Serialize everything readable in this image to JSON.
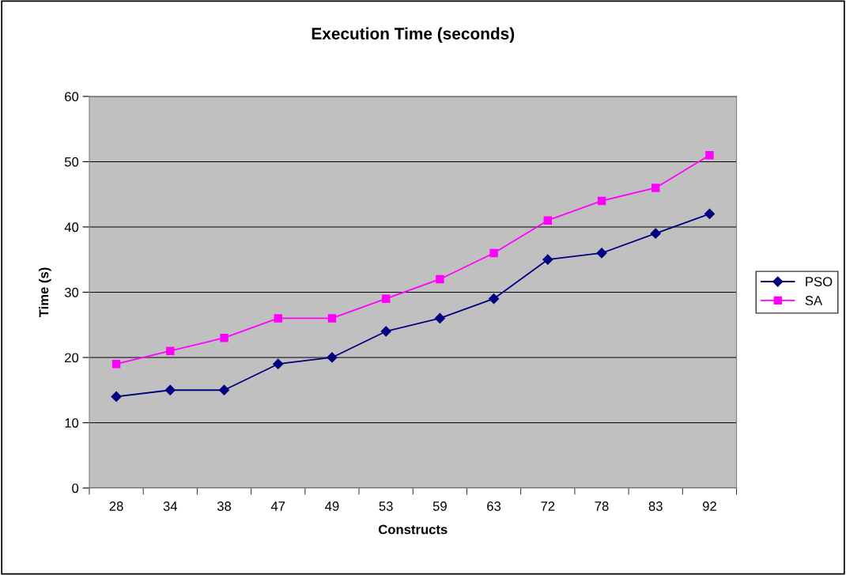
{
  "chart_data": {
    "type": "line",
    "title": "Execution Time (seconds)",
    "xlabel": "Constructs",
    "ylabel": "Time (s)",
    "categories": [
      "28",
      "34",
      "38",
      "47",
      "49",
      "53",
      "59",
      "63",
      "72",
      "78",
      "83",
      "92"
    ],
    "series": [
      {
        "name": "PSO",
        "color": "#000080",
        "marker": "diamond",
        "values": [
          14,
          15,
          15,
          19,
          20,
          24,
          26,
          29,
          35,
          36,
          39,
          42
        ]
      },
      {
        "name": "SA",
        "color": "#ff00ff",
        "marker": "square",
        "values": [
          19,
          21,
          23,
          26,
          26,
          29,
          32,
          36,
          41,
          44,
          46,
          51
        ]
      }
    ],
    "ylim": [
      0,
      60
    ],
    "yticks": [
      0,
      10,
      20,
      30,
      40,
      50,
      60
    ],
    "grid": "y",
    "legend": "right",
    "line_style": "solid"
  }
}
